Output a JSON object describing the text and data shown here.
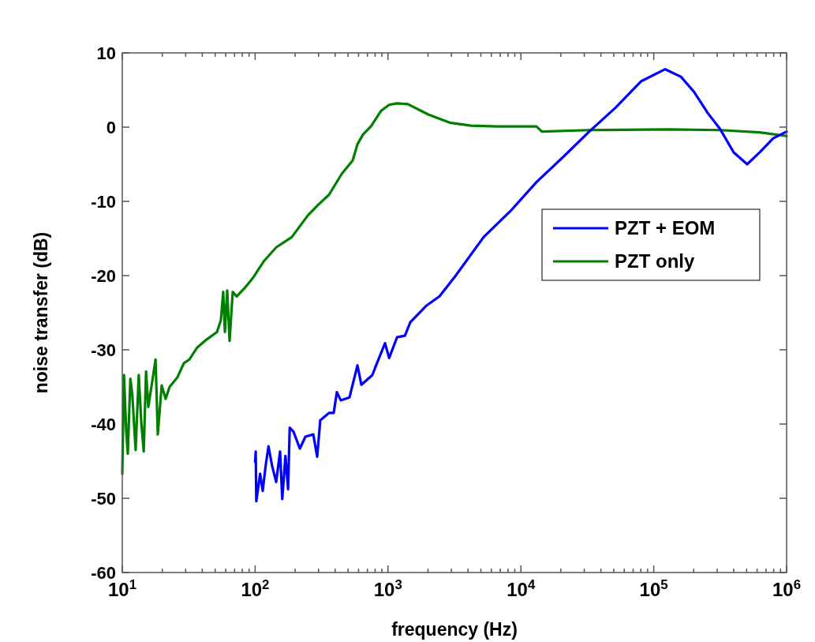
{
  "chart_data": {
    "type": "line",
    "xlabel": "frequency (Hz)",
    "ylabel": "noise transfer (dB)",
    "log": "x",
    "xlim": [
      10,
      1000000
    ],
    "ylim": [
      -60,
      10
    ],
    "xticks": [
      {
        "value": 10,
        "label": "10$^{1}$"
      },
      {
        "value": 20,
        "label": null
      },
      {
        "value": 30,
        "label": null
      },
      {
        "value": 40,
        "label": null
      },
      {
        "value": 50,
        "label": null
      },
      {
        "value": 60,
        "label": null
      },
      {
        "value": 70,
        "label": null
      },
      {
        "value": 80,
        "label": null
      },
      {
        "value": 90,
        "label": null
      },
      {
        "value": 100,
        "label": "10$^{2}$"
      },
      {
        "value": 200,
        "label": null
      },
      {
        "value": 300,
        "label": null
      },
      {
        "value": 400,
        "label": null
      },
      {
        "value": 500,
        "label": null
      },
      {
        "value": 600,
        "label": null
      },
      {
        "value": 700,
        "label": null
      },
      {
        "value": 800,
        "label": null
      },
      {
        "value": 900,
        "label": null
      },
      {
        "value": 1000,
        "label": "10$^{3}$"
      },
      {
        "value": 2000,
        "label": null
      },
      {
        "value": 3000,
        "label": null
      },
      {
        "value": 4000,
        "label": null
      },
      {
        "value": 5000,
        "label": null
      },
      {
        "value": 6000,
        "label": null
      },
      {
        "value": 7000,
        "label": null
      },
      {
        "value": 8000,
        "label": null
      },
      {
        "value": 9000,
        "label": null
      },
      {
        "value": 10000,
        "label": "10$^{4}$"
      },
      {
        "value": 20000,
        "label": null
      },
      {
        "value": 30000,
        "label": null
      },
      {
        "value": 40000,
        "label": null
      },
      {
        "value": 50000,
        "label": null
      },
      {
        "value": 60000,
        "label": null
      },
      {
        "value": 70000,
        "label": null
      },
      {
        "value": 80000,
        "label": null
      },
      {
        "value": 90000,
        "label": null
      },
      {
        "value": 100000,
        "label": "10$^{5}$"
      },
      {
        "value": 200000,
        "label": null
      },
      {
        "value": 300000,
        "label": null
      },
      {
        "value": 400000,
        "label": null
      },
      {
        "value": 500000,
        "label": null
      },
      {
        "value": 600000,
        "label": null
      },
      {
        "value": 700000,
        "label": null
      },
      {
        "value": 800000,
        "label": null
      },
      {
        "value": 900000,
        "label": null
      },
      {
        "value": 1000000,
        "label": "10$^{6}$"
      }
    ],
    "yticks": [
      -60,
      -50,
      -40,
      -30,
      -20,
      -10,
      0,
      10
    ],
    "grid": false,
    "legend": "right",
    "marker": "none",
    "line_style": "solid",
    "series": [
      {
        "name": "PZT + EOM",
        "color": "#0000ff",
        "x": [
          100,
          101,
          102,
          109,
          114,
          120,
          126,
          134,
          144,
          154,
          160,
          169,
          177,
          182,
          194,
          217,
          239,
          274,
          293,
          309,
          360,
          390,
          412,
          441,
          513,
          589,
          630,
          762,
          817,
          949,
          1020,
          1170,
          1340,
          1470,
          1930,
          2440,
          3200,
          5250,
          8360,
          13100,
          20600,
          32700,
          51400,
          80700,
          122000,
          160000,
          202000,
          255000,
          317000,
          400000,
          505000,
          628000,
          793000,
          1000000
        ],
        "values": [
          -45.1,
          -43.7,
          -50.4,
          -46.7,
          -49.0,
          -45.6,
          -43.0,
          -45.6,
          -47.8,
          -43.7,
          -50.1,
          -44.3,
          -48.8,
          -40.5,
          -41.0,
          -43.3,
          -41.7,
          -41.4,
          -44.4,
          -39.5,
          -38.5,
          -38.5,
          -35.7,
          -36.8,
          -36.4,
          -32.1,
          -34.7,
          -33.4,
          -32.0,
          -29.1,
          -31.1,
          -28.3,
          -28.1,
          -26.3,
          -24.1,
          -22.8,
          -20.1,
          -14.8,
          -11.3,
          -7.4,
          -4.1,
          -0.6,
          2.6,
          6.2,
          7.8,
          6.8,
          4.7,
          1.9,
          -0.3,
          -3.4,
          -5.0,
          -3.4,
          -1.5,
          -0.6
        ]
      },
      {
        "name": "PZT only",
        "color": "#007f00",
        "x": [
          10,
          10.3,
          10.7,
          11.0,
          11.5,
          11.9,
          12.6,
          13.3,
          13.9,
          14.5,
          15.1,
          15.7,
          17.8,
          18.5,
          19.8,
          21.2,
          22.7,
          26.0,
          29.1,
          32.0,
          36.6,
          43.2,
          51.6,
          55.2,
          57.5,
          59.2,
          61.6,
          64.2,
          67.8,
          72.6,
          83.2,
          95.4,
          117,
          144,
          189,
          249,
          297,
          360,
          448,
          542,
          589,
          648,
          743,
          887,
          1020,
          1170,
          1410,
          2010,
          2910,
          4210,
          6620,
          13100,
          14400,
          32700,
          129000,
          317000,
          628000,
          1000000
        ],
        "values": [
          -46.7,
          -33.4,
          -40.9,
          -44.0,
          -33.9,
          -36.1,
          -43.5,
          -33.4,
          -39.8,
          -43.7,
          -32.9,
          -37.7,
          -31.3,
          -41.4,
          -34.8,
          -36.6,
          -35.0,
          -33.7,
          -31.8,
          -31.3,
          -29.7,
          -28.6,
          -27.6,
          -26.0,
          -22.2,
          -27.6,
          -22.0,
          -28.8,
          -22.2,
          -22.8,
          -21.7,
          -20.4,
          -18.0,
          -16.2,
          -14.8,
          -11.9,
          -10.5,
          -9.1,
          -6.3,
          -4.5,
          -2.3,
          -1.0,
          0.1,
          2.2,
          3.0,
          3.2,
          3.1,
          1.7,
          0.6,
          0.2,
          0.1,
          0.1,
          -0.6,
          -0.4,
          -0.3,
          -0.4,
          -0.7,
          -1.2
        ]
      }
    ]
  }
}
